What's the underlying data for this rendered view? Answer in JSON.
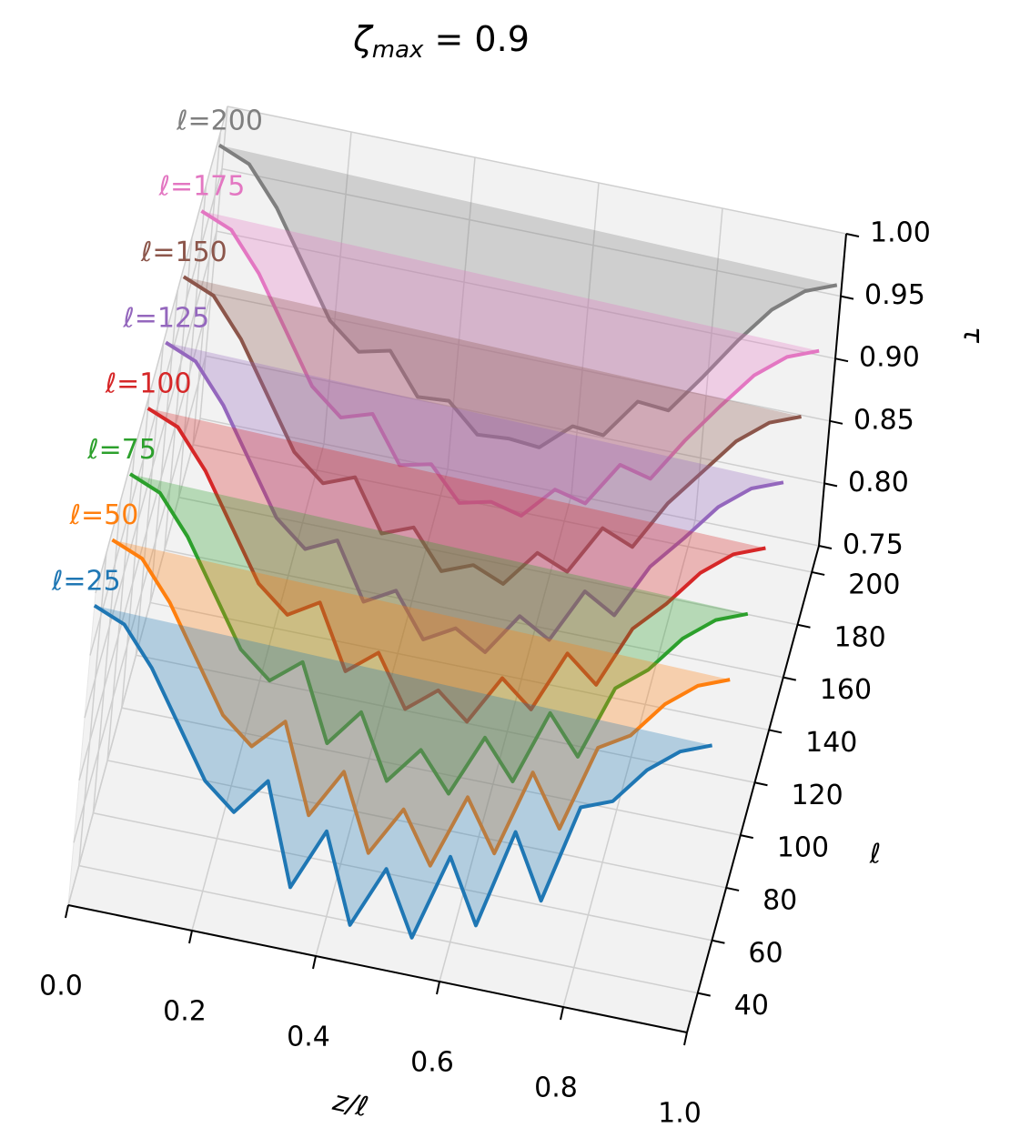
{
  "chart_data": {
    "type": "waterfall3d",
    "title": {
      "symbol": "ζ",
      "subscript": "max",
      "text": " = 0.9"
    },
    "x_label": "z/ℓ",
    "y_label": "ℓ",
    "z_label": "τ",
    "xlim": [
      0,
      1
    ],
    "xticks": [
      {
        "value": 0,
        "label": "0.0"
      },
      {
        "value": 0.2,
        "label": "0.2"
      },
      {
        "value": 0.4,
        "label": "0.4"
      },
      {
        "value": 0.6,
        "label": "0.6"
      },
      {
        "value": 0.8,
        "label": "0.8"
      },
      {
        "value": 1,
        "label": "1.0"
      }
    ],
    "ylim": [
      25,
      210
    ],
    "yticks": [
      40,
      60,
      80,
      100,
      120,
      140,
      160,
      180,
      200
    ],
    "zlim": [
      0.75,
      1.0
    ],
    "zticks": [
      0.75,
      {
        "value": 0.8,
        "label": "0.80"
      },
      0.85,
      {
        "value": 0.9,
        "label": "0.90"
      },
      0.95,
      {
        "value": 1,
        "label": "1.00"
      }
    ],
    "grid": true,
    "x": [
      0,
      0.05,
      0.1,
      0.15,
      0.2,
      0.25,
      0.3,
      0.35,
      0.4,
      0.45,
      0.5,
      0.55,
      0.6,
      0.65,
      0.7,
      0.75,
      0.8,
      0.85,
      0.9,
      0.95,
      1
    ],
    "series": [
      {
        "name": "ℓ=25",
        "ell": 25,
        "color": "#1f77b4",
        "values": [
          0.99,
          0.98,
          0.95,
          0.91,
          0.87,
          0.85,
          0.88,
          0.8,
          0.85,
          0.78,
          0.83,
          0.78,
          0.85,
          0.8,
          0.88,
          0.83,
          0.91,
          0.92,
          0.95,
          0.97,
          0.98
        ]
      },
      {
        "name": "ℓ=50",
        "ell": 50,
        "color": "#ff7f0e",
        "values": [
          0.99,
          0.98,
          0.95,
          0.91,
          0.87,
          0.85,
          0.875,
          0.805,
          0.845,
          0.785,
          0.825,
          0.785,
          0.845,
          0.805,
          0.875,
          0.835,
          0.905,
          0.92,
          0.95,
          0.97,
          0.98
        ]
      },
      {
        "name": "ℓ=75",
        "ell": 75,
        "color": "#2ca02c",
        "values": [
          0.99,
          0.98,
          0.95,
          0.91,
          0.87,
          0.85,
          0.87,
          0.81,
          0.84,
          0.79,
          0.82,
          0.79,
          0.84,
          0.81,
          0.87,
          0.84,
          0.9,
          0.92,
          0.95,
          0.97,
          0.98
        ]
      },
      {
        "name": "ℓ=100",
        "ell": 100,
        "color": "#d62728",
        "values": [
          0.99,
          0.98,
          0.95,
          0.91,
          0.87,
          0.85,
          0.865,
          0.815,
          0.835,
          0.795,
          0.815,
          0.795,
          0.835,
          0.815,
          0.865,
          0.845,
          0.895,
          0.92,
          0.95,
          0.97,
          0.98
        ]
      },
      {
        "name": "ℓ=125",
        "ell": 125,
        "color": "#9467bd",
        "values": [
          0.99,
          0.98,
          0.95,
          0.91,
          0.87,
          0.85,
          0.862,
          0.818,
          0.832,
          0.798,
          0.812,
          0.798,
          0.832,
          0.818,
          0.862,
          0.848,
          0.892,
          0.92,
          0.95,
          0.97,
          0.98
        ]
      },
      {
        "name": "ℓ=150",
        "ell": 150,
        "color": "#8c564b",
        "values": [
          0.99,
          0.98,
          0.95,
          0.91,
          0.87,
          0.85,
          0.86,
          0.82,
          0.83,
          0.8,
          0.81,
          0.8,
          0.83,
          0.82,
          0.86,
          0.85,
          0.89,
          0.92,
          0.95,
          0.97,
          0.98
        ]
      },
      {
        "name": "ℓ=175",
        "ell": 175,
        "color": "#e377c2",
        "values": [
          0.99,
          0.98,
          0.95,
          0.91,
          0.87,
          0.85,
          0.858,
          0.822,
          0.828,
          0.802,
          0.808,
          0.802,
          0.828,
          0.822,
          0.858,
          0.852,
          0.888,
          0.92,
          0.95,
          0.97,
          0.98
        ]
      },
      {
        "name": "ℓ=200",
        "ell": 200,
        "color": "#7f7f7f",
        "values": [
          0.99,
          0.98,
          0.95,
          0.91,
          0.87,
          0.85,
          0.856,
          0.824,
          0.826,
          0.804,
          0.806,
          0.804,
          0.826,
          0.824,
          0.856,
          0.854,
          0.886,
          0.92,
          0.95,
          0.97,
          0.98
        ]
      }
    ]
  }
}
